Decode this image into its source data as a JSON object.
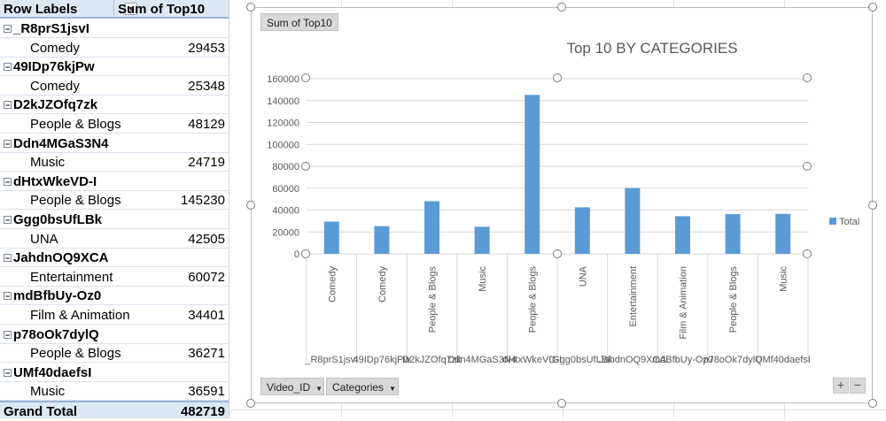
{
  "pivot": {
    "header_row_labels": "Row Labels",
    "header_sum": "Sum of Top10",
    "groups": [
      {
        "video_id": "_R8prS1jsvI",
        "category": "Comedy",
        "value": "29453"
      },
      {
        "video_id": "49IDp76kjPw",
        "category": "Comedy",
        "value": "25348"
      },
      {
        "video_id": "D2kJZOfq7zk",
        "category": "People & Blogs",
        "value": "48129"
      },
      {
        "video_id": "Ddn4MGaS3N4",
        "category": "Music",
        "value": "24719"
      },
      {
        "video_id": "dHtxWkeVD-I",
        "category": "People & Blogs",
        "value": "145230"
      },
      {
        "video_id": "Ggg0bsUfLBk",
        "category": "UNA",
        "value": "42505"
      },
      {
        "video_id": "JahdnOQ9XCA",
        "category": "Entertainment",
        "value": "60072"
      },
      {
        "video_id": "mdBfbUy-Oz0",
        "category": "Film & Animation",
        "value": "34401"
      },
      {
        "video_id": "p78oOk7dylQ",
        "category": "People & Blogs",
        "value": "36271"
      },
      {
        "video_id": "UMf40daefsI",
        "category": "Music",
        "value": "36591"
      }
    ],
    "grand_total_label": "Grand Total",
    "grand_total_value": "482719"
  },
  "chart": {
    "field_button_values": "Sum of Top10",
    "field_button_video": "Video_ID",
    "field_button_categories": "Categories",
    "zoom_plus": "+",
    "zoom_minus": "−"
  },
  "chart_data": {
    "type": "bar",
    "title": "Top 10 BY CATEGORIES",
    "ylim": [
      0,
      160000
    ],
    "yticks": [
      "0",
      "20000",
      "40000",
      "60000",
      "80000",
      "100000",
      "120000",
      "140000",
      "160000"
    ],
    "categories": [
      "Comedy",
      "Comedy",
      "People & Blogs",
      "Music",
      "People & Blogs",
      "UNA",
      "Entertainment",
      "Film & Animation",
      "People & Blogs",
      "Music"
    ],
    "outer_categories": [
      "_R8prS1jsvI",
      "49IDp76kjPw",
      "D2kJZOfq7zk",
      "Ddn4MGaS3N4",
      "dHtxWkeVD-I",
      "Ggg0bsUfLBk",
      "JahdnOQ9XCA",
      "mdBfbUy-Oz0",
      "p78oOk7dylQ",
      "UMf40daefsI"
    ],
    "series": [
      {
        "name": "Total",
        "values": [
          29453,
          25348,
          48129,
          24719,
          145230,
          42505,
          60072,
          34401,
          36271,
          36591
        ],
        "color": "#5b9bd5"
      }
    ],
    "legend": "right",
    "grid": true
  }
}
